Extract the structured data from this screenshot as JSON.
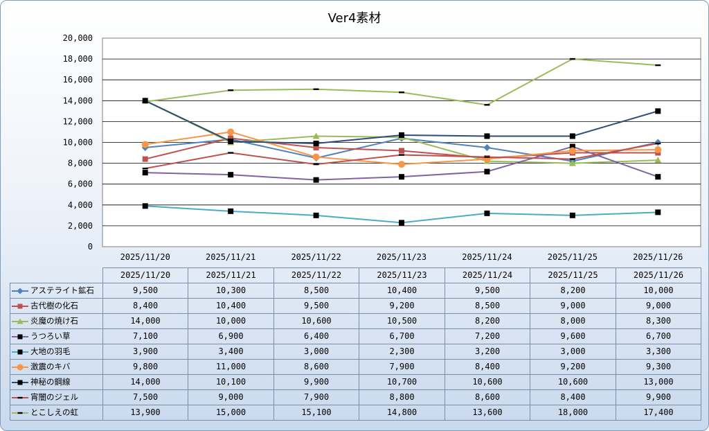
{
  "chart_data": {
    "type": "line",
    "title": "Ver4素材",
    "categories": [
      "2025/11/20",
      "2025/11/21",
      "2025/11/22",
      "2025/11/23",
      "2025/11/24",
      "2025/11/25",
      "2025/11/26"
    ],
    "ylim": [
      0,
      20000
    ],
    "yticks": [
      "0",
      "2,000",
      "4,000",
      "6,000",
      "8,000",
      "10,000",
      "12,000",
      "14,000",
      "16,000",
      "18,000",
      "20,000"
    ],
    "grid": true,
    "legend": "data-table",
    "series": [
      {
        "name": "アステライト鉱石",
        "color": "#4f81bd",
        "marker": "diamond",
        "values": [
          9500,
          10300,
          8500,
          10400,
          9500,
          8200,
          10000
        ],
        "labels": [
          "9,500",
          "10,300",
          "8,500",
          "10,400",
          "9,500",
          "8,200",
          "10,000"
        ]
      },
      {
        "name": "古代樹の化石",
        "color": "#c0504d",
        "marker": "square",
        "values": [
          8400,
          10400,
          9500,
          9200,
          8500,
          9000,
          9000
        ],
        "labels": [
          "8,400",
          "10,400",
          "9,500",
          "9,200",
          "8,500",
          "9,000",
          "9,000"
        ]
      },
      {
        "name": "炎魔の焼け石",
        "color": "#9bbb59",
        "marker": "triangle",
        "values": [
          14000,
          10000,
          10600,
          10500,
          8200,
          8000,
          8300
        ],
        "labels": [
          "14,000",
          "10,000",
          "10,600",
          "10,500",
          "8,200",
          "8,000",
          "8,300"
        ]
      },
      {
        "name": "うつろい草",
        "color": "#8064a2",
        "marker": "blacksquare",
        "values": [
          7100,
          6900,
          6400,
          6700,
          7200,
          9600,
          6700
        ],
        "labels": [
          "7,100",
          "6,900",
          "6,400",
          "6,700",
          "7,200",
          "9,600",
          "6,700"
        ]
      },
      {
        "name": "大地の羽毛",
        "color": "#4bacc6",
        "marker": "blacksquare",
        "values": [
          3900,
          3400,
          3000,
          2300,
          3200,
          3000,
          3300
        ],
        "labels": [
          "3,900",
          "3,400",
          "3,000",
          "2,300",
          "3,200",
          "3,000",
          "3,300"
        ]
      },
      {
        "name": "激震のキバ",
        "color": "#f79646",
        "marker": "circle",
        "values": [
          9800,
          11000,
          8600,
          7900,
          8400,
          9200,
          9300
        ],
        "labels": [
          "9,800",
          "11,000",
          "8,600",
          "7,900",
          "8,400",
          "9,200",
          "9,300"
        ]
      },
      {
        "name": "神秘の鋼線",
        "color": "#2c4d75",
        "marker": "blacksquare",
        "values": [
          14000,
          10100,
          9900,
          10700,
          10600,
          10600,
          13000
        ],
        "labels": [
          "14,000",
          "10,100",
          "9,900",
          "10,700",
          "10,600",
          "10,600",
          "13,000"
        ]
      },
      {
        "name": "宵闇のジェル",
        "color": "#c0504d",
        "marker": "dash",
        "values": [
          7500,
          9000,
          7900,
          8800,
          8600,
          8400,
          9900
        ],
        "labels": [
          "7,500",
          "9,000",
          "7,900",
          "8,800",
          "8,600",
          "8,400",
          "9,900"
        ]
      },
      {
        "name": "とこしえの虹",
        "color": "#9bbb59",
        "marker": "dash",
        "values": [
          13900,
          15000,
          15100,
          14800,
          13600,
          18000,
          17400
        ],
        "labels": [
          "13,900",
          "15,000",
          "15,100",
          "14,800",
          "13,600",
          "18,000",
          "17,400"
        ]
      }
    ]
  }
}
